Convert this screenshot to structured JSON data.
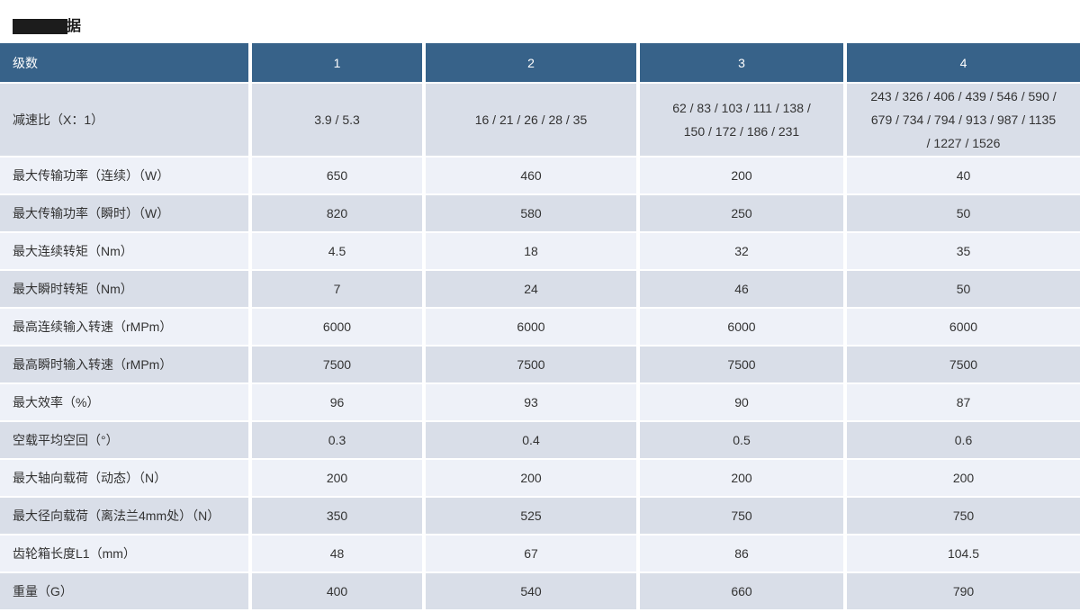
{
  "title": {
    "visible_char": "据"
  },
  "colors": {
    "header_bg": "#376289",
    "row_dark": "#d9dee8",
    "row_light": "#eef1f8",
    "text_color": "#333333",
    "header_text": "#ffffff",
    "redaction": "#1c1c1c",
    "separator": "#ffffff"
  },
  "table": {
    "header": {
      "label": "级数",
      "columns": [
        "1",
        "2",
        "3",
        "4"
      ]
    },
    "rows": [
      {
        "label": "减速比（X：1）",
        "values": [
          "3.9 / 5.3",
          "16 / 21 / 26 / 28 / 35",
          "62 / 83 / 103 / 111 / 138 / 150 / 172 / 186 / 231",
          "243 / 326 / 406 / 439 / 546 / 590 / 679 / 734 / 794 / 913 / 987 / 1135 / 1227 / 1526"
        ]
      },
      {
        "label": "最大传输功率（连续）（W）",
        "values": [
          "650",
          "460",
          "200",
          "40"
        ]
      },
      {
        "label": "最大传输功率（瞬时）（W）",
        "values": [
          "820",
          "580",
          "250",
          "50"
        ]
      },
      {
        "label": "最大连续转矩（Nm）",
        "values": [
          "4.5",
          "18",
          "32",
          "35"
        ]
      },
      {
        "label": "最大瞬时转矩（Nm）",
        "values": [
          "7",
          "24",
          "46",
          "50"
        ]
      },
      {
        "label": "最高连续输入转速（rMPm）",
        "values": [
          "6000",
          "6000",
          "6000",
          "6000"
        ]
      },
      {
        "label": "最高瞬时输入转速（rMPm）",
        "values": [
          "7500",
          "7500",
          "7500",
          "7500"
        ]
      },
      {
        "label": "最大效率（%）",
        "values": [
          "96",
          "93",
          "90",
          "87"
        ]
      },
      {
        "label": "空载平均空回（°）",
        "values": [
          "0.3",
          "0.4",
          "0.5",
          "0.6"
        ]
      },
      {
        "label": "最大轴向载荷（动态）（N）",
        "values": [
          "200",
          "200",
          "200",
          "200"
        ]
      },
      {
        "label": "最大径向载荷（离法兰4mm处）（N）",
        "values": [
          "350",
          "525",
          "750",
          "750"
        ]
      },
      {
        "label": "齿轮箱长度L1（mm）",
        "values": [
          "48",
          "67",
          "86",
          "104.5"
        ]
      },
      {
        "label": "重量（G）",
        "values": [
          "400",
          "540",
          "660",
          "790"
        ]
      }
    ]
  }
}
